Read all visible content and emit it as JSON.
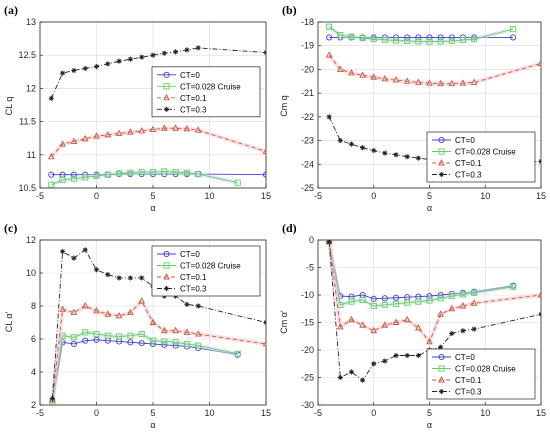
{
  "chart_data": [
    {
      "panel_label": "(a)",
      "type": "line",
      "xlabel": "α",
      "ylabel": "CL q",
      "xlim": [
        -5,
        15
      ],
      "ylim": [
        10.5,
        13
      ],
      "xticks": [
        -5,
        0,
        5,
        10,
        15
      ],
      "yticks": [
        10.5,
        11,
        11.5,
        12,
        12.5,
        13
      ],
      "grid": true,
      "legend_position": "center-right",
      "series": [
        {
          "name": "CT=0",
          "x": [
            -4,
            -3,
            -2,
            -1,
            0,
            1,
            2,
            3,
            4,
            5,
            6,
            7,
            8,
            9,
            15
          ],
          "y": [
            10.7,
            10.7,
            10.7,
            10.7,
            10.7,
            10.7,
            10.71,
            10.71,
            10.71,
            10.71,
            10.71,
            10.71,
            10.71,
            10.71,
            10.7
          ]
        },
        {
          "name": "CT=0.028  Cruise",
          "x": [
            -4,
            -3,
            -2,
            -1,
            0,
            1,
            2,
            3,
            4,
            5,
            6,
            7,
            8,
            9,
            12.5
          ],
          "y": [
            10.55,
            10.62,
            10.64,
            10.66,
            10.68,
            10.7,
            10.72,
            10.73,
            10.74,
            10.74,
            10.75,
            10.74,
            10.73,
            10.71,
            10.58
          ]
        },
        {
          "name": "CT=0.1",
          "x": [
            -4,
            -3,
            -2,
            -1,
            0,
            1,
            2,
            3,
            4,
            5,
            6,
            7,
            8,
            9,
            15
          ],
          "y": [
            10.97,
            11.16,
            11.2,
            11.24,
            11.28,
            11.3,
            11.32,
            11.34,
            11.36,
            11.38,
            11.4,
            11.4,
            11.39,
            11.37,
            11.05
          ]
        },
        {
          "name": "CT=0.3",
          "x": [
            -4,
            -3,
            -2,
            -1,
            0,
            1,
            2,
            3,
            4,
            5,
            6,
            7,
            8,
            9,
            15
          ],
          "y": [
            11.85,
            12.23,
            12.27,
            12.3,
            12.33,
            12.37,
            12.41,
            12.44,
            12.47,
            12.5,
            12.53,
            12.55,
            12.58,
            12.61,
            12.54
          ]
        }
      ]
    },
    {
      "panel_label": "(b)",
      "type": "line",
      "xlabel": "α",
      "ylabel": "Cm q",
      "xlim": [
        -5,
        15
      ],
      "ylim": [
        -25,
        -18
      ],
      "xticks": [
        -5,
        0,
        5,
        10,
        15
      ],
      "yticks": [
        -25,
        -24,
        -23,
        -22,
        -21,
        -20,
        -19,
        -18
      ],
      "grid": true,
      "legend_position": "bottom-right",
      "series": [
        {
          "name": "CT=0",
          "x": [
            -4,
            -3,
            -2,
            -1,
            0,
            1,
            2,
            3,
            4,
            5,
            6,
            7,
            8,
            9,
            12.5
          ],
          "y": [
            -18.65,
            -18.65,
            -18.65,
            -18.65,
            -18.65,
            -18.65,
            -18.65,
            -18.65,
            -18.65,
            -18.65,
            -18.65,
            -18.65,
            -18.65,
            -18.65,
            -18.65
          ]
        },
        {
          "name": "CT=0.028  Cruise",
          "x": [
            -4,
            -3,
            -2,
            -1,
            0,
            1,
            2,
            3,
            4,
            5,
            6,
            7,
            8,
            9,
            12.5
          ],
          "y": [
            -18.2,
            -18.55,
            -18.62,
            -18.68,
            -18.72,
            -18.75,
            -18.78,
            -18.8,
            -18.82,
            -18.83,
            -18.82,
            -18.8,
            -18.76,
            -18.72,
            -18.3
          ]
        },
        {
          "name": "CT=0.1",
          "x": [
            -4,
            -3,
            -2,
            -1,
            0,
            1,
            2,
            3,
            4,
            5,
            6,
            7,
            8,
            9,
            15
          ],
          "y": [
            -19.4,
            -20.0,
            -20.15,
            -20.25,
            -20.33,
            -20.4,
            -20.45,
            -20.5,
            -20.55,
            -20.58,
            -20.6,
            -20.6,
            -20.58,
            -20.55,
            -19.75
          ]
        },
        {
          "name": "CT=0.3",
          "x": [
            -4,
            -3,
            -2,
            -1,
            0,
            1,
            2,
            3,
            4,
            5,
            6,
            7,
            8,
            9,
            15
          ],
          "y": [
            -22.0,
            -23.0,
            -23.15,
            -23.3,
            -23.42,
            -23.53,
            -23.6,
            -23.68,
            -23.74,
            -23.8,
            -23.86,
            -23.92,
            -23.97,
            -24.02,
            -23.88
          ]
        }
      ]
    },
    {
      "panel_label": "(c)",
      "type": "line",
      "xlabel": "α",
      "ylabel": "CL α'",
      "xlim": [
        -5,
        15
      ],
      "ylim": [
        2,
        12
      ],
      "xticks": [
        -5,
        0,
        5,
        10,
        15
      ],
      "yticks": [
        2,
        4,
        6,
        8,
        10,
        12
      ],
      "grid": true,
      "legend_position": "top-right",
      "series": [
        {
          "name": "CT=0",
          "x": [
            -3.9,
            -3,
            -2,
            -1,
            0,
            1,
            2,
            3,
            4,
            5,
            6,
            7,
            8,
            9,
            12.5
          ],
          "y": [
            2.1,
            5.8,
            5.7,
            5.9,
            5.95,
            5.9,
            5.85,
            5.8,
            5.75,
            5.7,
            5.65,
            5.6,
            5.55,
            5.45,
            5.05
          ]
        },
        {
          "name": "CT=0.028  Cruise",
          "x": [
            -3.9,
            -3,
            -2,
            -1,
            0,
            1,
            2,
            3,
            4,
            5,
            6,
            7,
            8,
            9,
            12.5
          ],
          "y": [
            2.2,
            6.2,
            6.1,
            6.4,
            6.3,
            6.2,
            6.15,
            6.2,
            6.3,
            5.9,
            5.85,
            5.8,
            5.7,
            5.6,
            5.1
          ]
        },
        {
          "name": "CT=0.1",
          "x": [
            -3.9,
            -3,
            -2,
            -1,
            0,
            1,
            2,
            3,
            4,
            5,
            6,
            7,
            8,
            9,
            15
          ],
          "y": [
            2.3,
            7.8,
            7.6,
            8.0,
            7.7,
            7.5,
            7.4,
            7.6,
            8.3,
            7.0,
            6.5,
            6.5,
            6.4,
            6.3,
            5.7
          ]
        },
        {
          "name": "CT=0.3",
          "x": [
            -3.9,
            -3,
            -2,
            -1,
            0,
            1,
            2,
            3,
            4,
            5,
            6,
            7,
            8,
            9,
            15
          ],
          "y": [
            2.4,
            11.3,
            10.9,
            11.4,
            10.2,
            9.9,
            9.7,
            9.7,
            9.7,
            9.2,
            8.6,
            8.6,
            8.1,
            8.0,
            7.0
          ]
        }
      ]
    },
    {
      "panel_label": "(d)",
      "type": "line",
      "xlabel": "α",
      "ylabel": "Cm α'",
      "xlim": [
        -5,
        15
      ],
      "ylim": [
        -30,
        0
      ],
      "xticks": [
        -5,
        0,
        5,
        10,
        15
      ],
      "yticks": [
        -30,
        -25,
        -20,
        -15,
        -10,
        -5,
        0
      ],
      "grid": true,
      "legend_position": "bottom-right",
      "series": [
        {
          "name": "CT=0",
          "x": [
            -4,
            -3,
            -2,
            -1,
            0,
            1,
            2,
            3,
            4,
            5,
            6,
            7,
            8,
            9,
            12.5
          ],
          "y": [
            -0.3,
            -10.2,
            -10.3,
            -10.0,
            -10.7,
            -10.6,
            -10.5,
            -10.4,
            -10.3,
            -10.2,
            -10.0,
            -9.8,
            -9.6,
            -9.4,
            -8.3
          ]
        },
        {
          "name": "CT=0.028  Cruise",
          "x": [
            -4,
            -3,
            -2,
            -1,
            0,
            1,
            2,
            3,
            4,
            5,
            6,
            7,
            8,
            9,
            12.5
          ],
          "y": [
            -0.3,
            -11.8,
            -11.2,
            -10.9,
            -12.0,
            -11.8,
            -11.6,
            -11.4,
            -11.2,
            -11.0,
            -10.6,
            -10.2,
            -9.9,
            -9.6,
            -8.5
          ]
        },
        {
          "name": "CT=0.1",
          "x": [
            -4,
            -3,
            -2,
            -1,
            0,
            1,
            2,
            3,
            4,
            5,
            6,
            7,
            8,
            9,
            15
          ],
          "y": [
            -0.3,
            -15.8,
            -14.5,
            -15.5,
            -16.5,
            -15.5,
            -15.0,
            -14.5,
            -16.0,
            -18.5,
            -13.5,
            -12.5,
            -12.0,
            -11.5,
            -10.0
          ]
        },
        {
          "name": "CT=0.3",
          "x": [
            -4,
            -3,
            -2,
            -1,
            0,
            1,
            2,
            3,
            4,
            5,
            6,
            7,
            8,
            9,
            15
          ],
          "y": [
            -0.3,
            -25.0,
            -24.0,
            -25.5,
            -22.5,
            -22.0,
            -21.0,
            -21.0,
            -21.0,
            -20.0,
            -19.5,
            -17.0,
            -16.5,
            -16.2,
            -13.5
          ]
        }
      ]
    }
  ],
  "series_styles": [
    {
      "color": "#3f3fd6",
      "marker": "circle",
      "dash": ""
    },
    {
      "color": "#5fd35f",
      "marker": "square",
      "dash": ""
    },
    {
      "color": "#c85a3c",
      "marker": "triangle",
      "dash": "4,3"
    },
    {
      "color": "#222222",
      "marker": "star",
      "dash": "5,2,1,2"
    }
  ],
  "band_color": "#f6c7cf"
}
